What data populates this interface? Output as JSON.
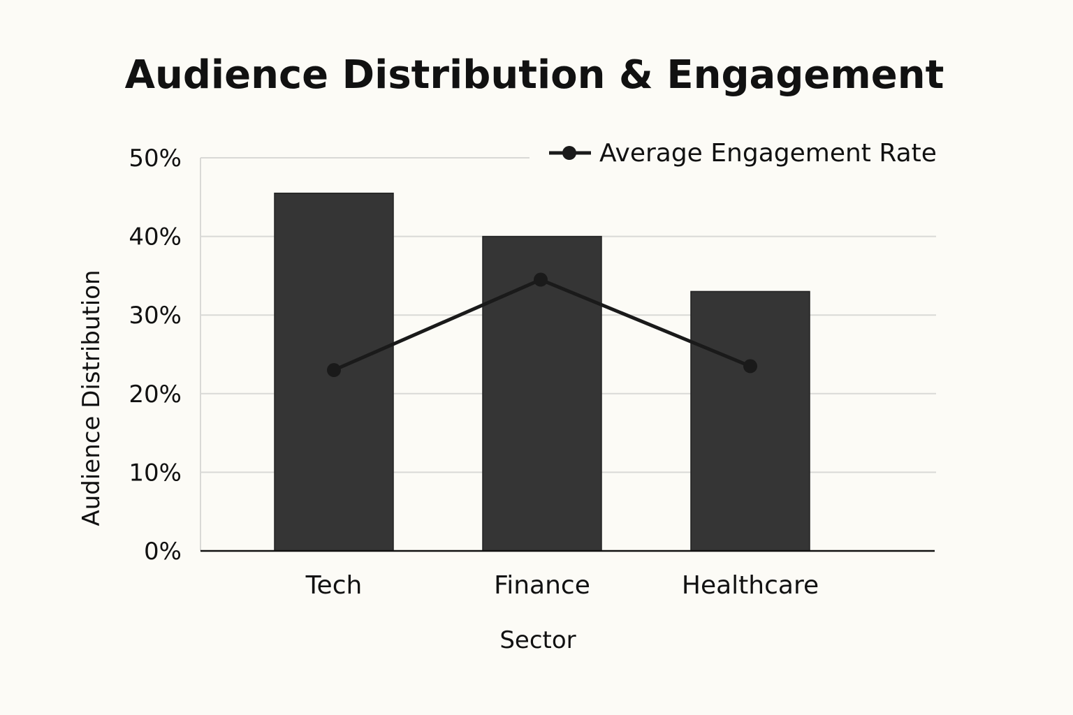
{
  "chart_data": {
    "type": "bar",
    "title": "Audience Distribution & Engagement",
    "xlabel": "Sector",
    "ylabel": "Audience Distribution",
    "categories": [
      "Tech",
      "Finance",
      "Healthcare"
    ],
    "ylim": [
      0,
      50
    ],
    "yticks": [
      "0%",
      "10%",
      "20%",
      "30%",
      "40%",
      "50%"
    ],
    "grid": true,
    "legend_position": "top-right",
    "series": [
      {
        "type": "bar",
        "values": [
          45.5,
          40,
          33
        ]
      },
      {
        "type": "line",
        "name": "Average Engagement Rate",
        "values": [
          23,
          34.5,
          23.5
        ]
      }
    ],
    "colors": {
      "background": "#fcfbf6",
      "bar": "#353535",
      "line": "#1a1a1a",
      "grid": "#d9d9d6",
      "axis": "#111111"
    }
  }
}
